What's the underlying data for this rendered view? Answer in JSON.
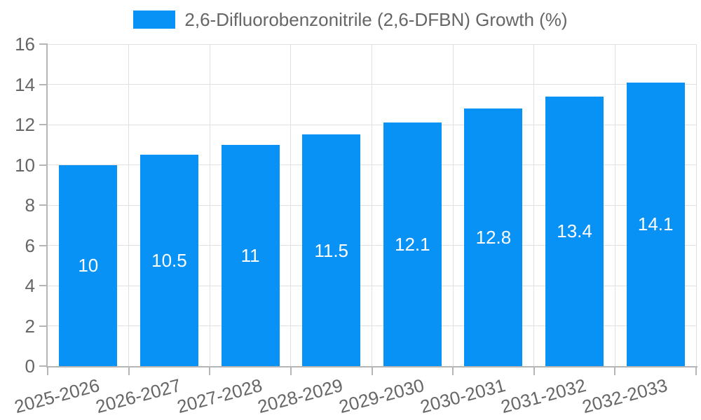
{
  "chart_data": {
    "type": "bar",
    "title": "2,6-Difluorobenzonitrile (2,6-DFBN) Growth (%)",
    "categories": [
      "2025-2026",
      "2026-2027",
      "2027-2028",
      "2028-2029",
      "2029-2030",
      "2030-2031",
      "2031-2032",
      "2032-2033"
    ],
    "series": [
      {
        "name": "2,6-Difluorobenzonitrile (2,6-DFBN) Growth (%)",
        "values": [
          10,
          10.5,
          11,
          11.5,
          12.1,
          12.8,
          13.4,
          14.1
        ],
        "data_labels": [
          "10",
          "10.5",
          "11",
          "11.5",
          "12.1",
          "12.8",
          "13.4",
          "14.1"
        ],
        "color": "#0992F5"
      }
    ],
    "xlabel": "",
    "ylabel": "",
    "ylim": [
      0,
      16
    ],
    "yticks": [
      0,
      2,
      4,
      6,
      8,
      10,
      12,
      14,
      16
    ],
    "grid": true,
    "legend_position": "top",
    "x_label_rotation_deg": -15,
    "colors": {
      "bar": "#0992F5",
      "data_label": "#FFFFFF",
      "axis_text": "#666666",
      "grid_line": "#E0E0E0",
      "axis_line": "#B5B5B5",
      "background": "#FFFFFF"
    }
  }
}
